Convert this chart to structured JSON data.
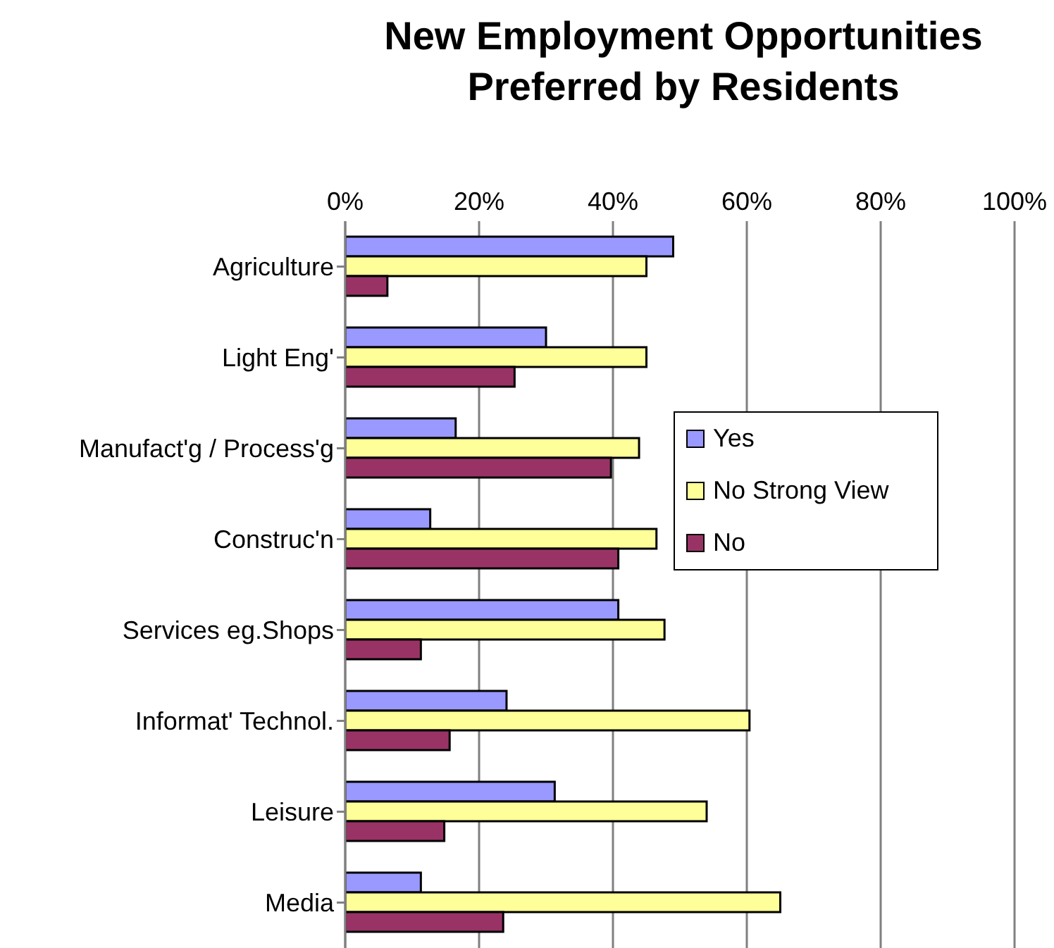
{
  "chart_data": {
    "type": "bar",
    "orientation": "horizontal",
    "title": "New Employment Opportunities Preferred by Residents",
    "categories": [
      "Agriculture",
      "Light Eng'",
      "Manufact'g / Process'g",
      "Construc'n",
      "Services eg.Shops",
      "Informat' Technol.",
      "Leisure",
      "Media"
    ],
    "series": [
      {
        "name": "Yes",
        "color": "#9999ff",
        "values": [
          49,
          30,
          16.5,
          12.7,
          40.8,
          24.1,
          31.3,
          11.3
        ]
      },
      {
        "name": "No Strong View",
        "color": "#ffff99",
        "values": [
          45,
          45,
          43.9,
          46.5,
          47.7,
          60.4,
          54,
          65
        ]
      },
      {
        "name": "No",
        "color": "#993366",
        "values": [
          6.3,
          25.3,
          39.7,
          40.8,
          11.3,
          15.6,
          14.8,
          23.6
        ]
      }
    ],
    "xlim": [
      0,
      100
    ],
    "xticks": [
      {
        "value": 0,
        "label": "0%"
      },
      {
        "value": 20,
        "label": "20%"
      },
      {
        "value": 40,
        "label": "40%"
      },
      {
        "value": 60,
        "label": "60%"
      },
      {
        "value": 80,
        "label": "80%"
      },
      {
        "value": 100,
        "label": "100%"
      }
    ],
    "grid": "x",
    "legend": "right"
  }
}
